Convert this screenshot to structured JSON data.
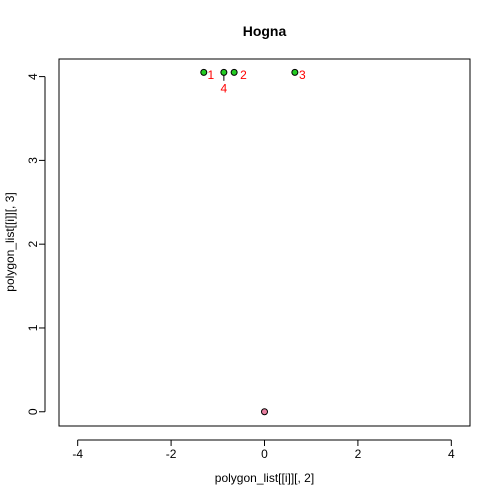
{
  "chart_data": {
    "type": "scatter",
    "title": "Hogna",
    "xlabel": "polygon_list[[i]][, 2]",
    "ylabel": "polygon_list[[i]][, 3]",
    "xlim": [
      -4.4,
      4.4
    ],
    "ylim": [
      -0.17,
      4.21
    ],
    "xticks": [
      -4,
      -2,
      0,
      2,
      4
    ],
    "yticks": [
      0,
      1,
      2,
      3,
      4
    ],
    "grid": false,
    "legend": "none",
    "colors": {
      "point_green": "#22cc22",
      "point_pink": "#e87fa0",
      "label_red": "#ff0000",
      "axis": "#000000"
    },
    "points": [
      {
        "x": -1.3,
        "y": 4.05,
        "color": "#22cc22"
      },
      {
        "x": -0.87,
        "y": 4.05,
        "color": "#22cc22"
      },
      {
        "x": -0.65,
        "y": 4.05,
        "color": "#22cc22"
      },
      {
        "x": 0.65,
        "y": 4.05,
        "color": "#22cc22"
      },
      {
        "x": 0.0,
        "y": 0.0,
        "color": "#e87fa0"
      }
    ],
    "segments": [
      {
        "x1": -0.87,
        "y1": 4.05,
        "x2": -0.87,
        "y2": 3.95
      }
    ],
    "labels": [
      {
        "text": "1",
        "x": -1.15,
        "y": 4.02
      },
      {
        "text": "2",
        "x": -0.45,
        "y": 4.02
      },
      {
        "text": "3",
        "x": 0.81,
        "y": 4.02
      },
      {
        "text": "4",
        "x": -0.87,
        "y": 3.86
      }
    ]
  }
}
